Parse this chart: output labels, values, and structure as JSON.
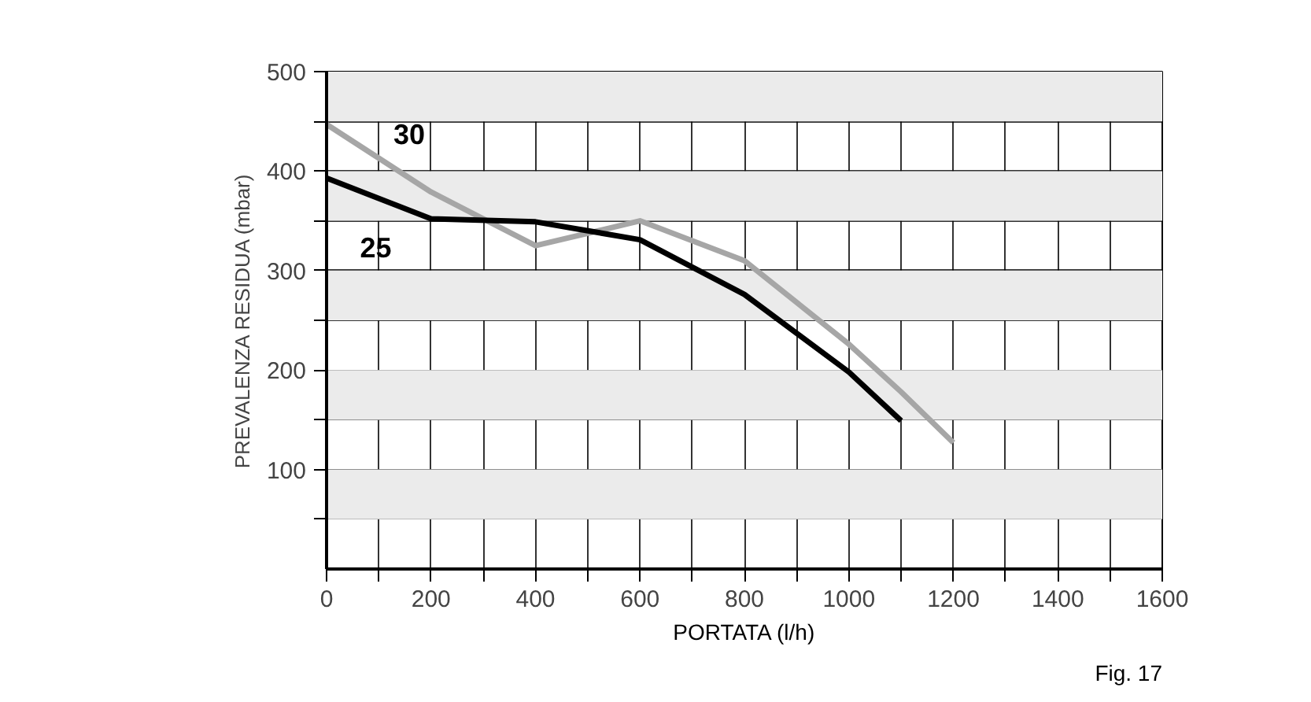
{
  "chart_data": {
    "type": "line",
    "xlabel": "PORTATA (l/h)",
    "ylabel": "PREVALENZA RESIDUA (mbar)",
    "annotations": [
      "Fig. 17"
    ],
    "xlim": [
      0,
      1600
    ],
    "ylim": [
      0,
      500
    ],
    "xticks": [
      0,
      {
        "value": 100,
        "label": null
      },
      200,
      {
        "value": 300,
        "label": null
      },
      400,
      {
        "value": 500,
        "label": null
      },
      600,
      {
        "value": 700,
        "label": null
      },
      800,
      {
        "value": 900,
        "label": null
      },
      1000,
      {
        "value": 1100,
        "label": null
      },
      1200,
      {
        "value": 1300,
        "label": null
      },
      1400,
      {
        "value": 1500,
        "label": null
      },
      1600
    ],
    "yticks": [
      {
        "value": 50,
        "label": null
      },
      100,
      {
        "value": 150,
        "label": null
      },
      200,
      {
        "value": 250,
        "label": null
      },
      300,
      {
        "value": 350,
        "label": null
      },
      400,
      {
        "value": 450,
        "label": null
      },
      500
    ],
    "grid": true,
    "legend": false,
    "bands": [
      {
        "axis": "y",
        "from": 50,
        "to": 100,
        "color": "#ebebeb"
      },
      {
        "axis": "y",
        "from": 150,
        "to": 200,
        "color": "#ebebeb"
      },
      {
        "axis": "y",
        "from": 250,
        "to": 300,
        "color": "#ebebeb"
      },
      {
        "axis": "y",
        "from": 350,
        "to": 400,
        "color": "#ebebeb"
      },
      {
        "axis": "y",
        "from": 450,
        "to": 500,
        "color": "#ebebeb"
      }
    ],
    "series": [
      {
        "name": "30",
        "color": "#a6a6a6",
        "x": [
          0,
          200,
          400,
          600,
          800,
          1000,
          1100,
          1200
        ],
        "values": [
          447,
          379,
          325,
          350,
          310,
          226,
          178,
          127
        ]
      },
      {
        "name": "25",
        "color": "#000000",
        "x": [
          0,
          200,
          400,
          600,
          800,
          1000,
          1100
        ],
        "values": [
          393,
          352,
          349,
          331,
          276,
          198,
          149
        ]
      }
    ]
  }
}
